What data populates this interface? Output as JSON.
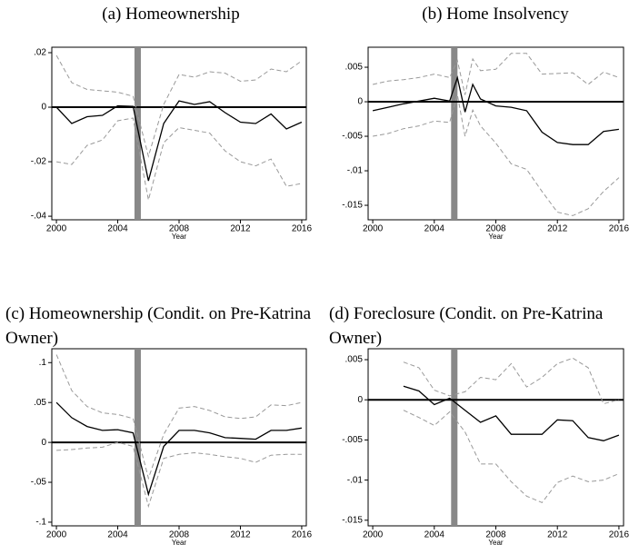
{
  "chart_data": [
    {
      "type": "line",
      "title": "(a) Homeownership",
      "xlabel": "Year",
      "x": [
        2000,
        2001,
        2002,
        2003,
        2004,
        2005,
        2006,
        2007,
        2008,
        2009,
        2010,
        2011,
        2012,
        2013,
        2014,
        2015,
        2016
      ],
      "series": [
        {
          "color": "#000000",
          "dashed": false,
          "values": [
            0,
            -0.006,
            -0.0035,
            -0.003,
            0.0005,
            0.0003,
            -0.027,
            -0.006,
            0.0023,
            0.001,
            0.002,
            -0.002,
            -0.0055,
            -0.006,
            -0.0025,
            -0.008,
            -0.0055
          ]
        },
        {
          "color": "#999999",
          "dashed": true,
          "values": [
            0.019,
            0.009,
            0.0065,
            0.006,
            0.0055,
            0.004,
            -0.018,
            0.001,
            0.012,
            0.011,
            0.013,
            0.0125,
            0.0095,
            0.01,
            0.014,
            0.013,
            0.017
          ]
        },
        {
          "color": "#999999",
          "dashed": true,
          "values": [
            -0.02,
            -0.021,
            -0.014,
            -0.012,
            -0.005,
            -0.004,
            -0.034,
            -0.013,
            -0.0075,
            -0.0085,
            -0.0095,
            -0.016,
            -0.02,
            -0.0215,
            -0.019,
            -0.029,
            -0.028
          ]
        }
      ],
      "xlim": [
        1999.7,
        2016.3
      ],
      "xticks": [
        2000,
        2004,
        2008,
        2012,
        2016
      ],
      "ylim": [
        -0.0413,
        0.022
      ],
      "yticks": [
        {
          "value": 0.02,
          "label": ".02"
        },
        0,
        {
          "value": -0.02,
          "label": "-.02"
        },
        {
          "value": -0.04,
          "label": "-.04"
        }
      ],
      "event_x": 2005.3,
      "event_color": "#888888"
    },
    {
      "type": "line",
      "title": "(b) Home Insolvency",
      "xlabel": "Year",
      "x": [
        2000,
        2001,
        2002,
        2003,
        2004,
        2005,
        2005.5,
        2006,
        2006.5,
        2007,
        2008,
        2009,
        2010,
        2011,
        2012,
        2013,
        2014,
        2015,
        2016
      ],
      "series": [
        {
          "color": "#000000",
          "dashed": false,
          "values": [
            -0.0013,
            -0.0008,
            -0.0003,
            0.0001,
            0.0005,
            0.0001,
            0.0035,
            -0.0015,
            0.0025,
            0.0004,
            -0.0006,
            -0.0008,
            -0.0013,
            -0.0044,
            -0.0059,
            -0.0062,
            -0.0062,
            -0.0043,
            -0.004
          ]
        },
        {
          "color": "#999999",
          "dashed": true,
          "values": [
            0.0025,
            0.003,
            0.0032,
            0.0035,
            0.004,
            0.0035,
            0.006,
            0.001,
            0.0062,
            0.0045,
            0.0047,
            0.007,
            0.007,
            0.004,
            0.0041,
            0.0042,
            0.0025,
            0.0043,
            0.0035
          ]
        },
        {
          "color": "#999999",
          "dashed": true,
          "values": [
            -0.005,
            -0.0046,
            -0.0039,
            -0.0035,
            -0.0028,
            -0.003,
            0.001,
            -0.005,
            -0.0012,
            -0.0035,
            -0.006,
            -0.009,
            -0.0098,
            -0.013,
            -0.016,
            -0.0165,
            -0.0155,
            -0.013,
            -0.011
          ]
        }
      ],
      "xlim": [
        1999.7,
        2016.3
      ],
      "xticks": [
        2000,
        2004,
        2008,
        2012,
        2016
      ],
      "ylim": [
        -0.0171,
        0.0079
      ],
      "yticks": [
        {
          "value": 0.005,
          "label": ".005"
        },
        0,
        {
          "value": -0.005,
          "label": "-.005"
        },
        {
          "value": -0.01,
          "label": "-.01"
        },
        {
          "value": -0.015,
          "label": "-.015"
        }
      ],
      "event_x": 2005.3,
      "event_color": "#888888"
    },
    {
      "type": "line",
      "title": "(c) Homeownership (Condit. on Pre-Katrina Owner)",
      "xlabel": "Year",
      "x": [
        2000,
        2001,
        2002,
        2003,
        2004,
        2005,
        2006,
        2007,
        2008,
        2009,
        2010,
        2011,
        2012,
        2013,
        2014,
        2015,
        2016
      ],
      "series": [
        {
          "color": "#000000",
          "dashed": false,
          "values": [
            0.05,
            0.031,
            0.02,
            0.015,
            0.016,
            0.012,
            -0.065,
            -0.005,
            0.015,
            0.015,
            0.012,
            0.006,
            0.005,
            0.004,
            0.015,
            0.015,
            0.018
          ]
        },
        {
          "color": "#999999",
          "dashed": true,
          "values": [
            0.11,
            0.065,
            0.045,
            0.037,
            0.035,
            0.03,
            -0.045,
            0.01,
            0.043,
            0.045,
            0.04,
            0.032,
            0.03,
            0.032,
            0.047,
            0.046,
            0.05
          ]
        },
        {
          "color": "#999999",
          "dashed": true,
          "values": [
            -0.01,
            -0.009,
            -0.007,
            -0.006,
            0,
            -0.005,
            -0.08,
            -0.02,
            -0.015,
            -0.013,
            -0.015,
            -0.018,
            -0.02,
            -0.025,
            -0.016,
            -0.015,
            -0.015
          ]
        }
      ],
      "xlim": [
        1999.7,
        2016.3
      ],
      "xticks": [
        2000,
        2004,
        2008,
        2012,
        2016
      ],
      "ylim": [
        -0.1046,
        0.1174
      ],
      "yticks": [
        {
          "value": 0.1,
          "label": ".1"
        },
        {
          "value": 0.05,
          "label": ".05"
        },
        0,
        {
          "value": -0.05,
          "label": "-.05"
        },
        {
          "value": -0.1,
          "label": "-.1"
        }
      ],
      "event_x": 2005.3,
      "event_color": "#888888"
    },
    {
      "type": "line",
      "title": "(d) Foreclosure (Condit. on Pre-Katrina Owner)",
      "xlabel": "Year",
      "x": [
        2002,
        2003,
        2004,
        2005,
        2006,
        2007,
        2008,
        2009,
        2010,
        2011,
        2012,
        2013,
        2014,
        2015,
        2016
      ],
      "series": [
        {
          "color": "#000000",
          "dashed": false,
          "values": [
            0.0017,
            0.0011,
            -0.0006,
            0.0002,
            -0.0013,
            -0.0028,
            -0.002,
            -0.0043,
            -0.0043,
            -0.0043,
            -0.0025,
            -0.0026,
            -0.0047,
            -0.0051,
            -0.0044
          ]
        },
        {
          "color": "#999999",
          "dashed": true,
          "values": [
            0.0047,
            0.004,
            0.0012,
            0.0005,
            0.001,
            0.0028,
            0.0025,
            0.0045,
            0.0016,
            0.0028,
            0.0045,
            0.0052,
            0.004,
            -0.0005,
            0
          ]
        },
        {
          "color": "#999999",
          "dashed": true,
          "values": [
            -0.0013,
            -0.0022,
            -0.0032,
            -0.0015,
            -0.004,
            -0.008,
            -0.008,
            -0.0102,
            -0.012,
            -0.0128,
            -0.0103,
            -0.0095,
            -0.0102,
            -0.01,
            -0.0092
          ]
        }
      ],
      "xlim": [
        1999.7,
        2016.3
      ],
      "xticks": [
        2000,
        2004,
        2008,
        2012,
        2016
      ],
      "ylim": [
        -0.0157,
        0.00636
      ],
      "yticks": [
        {
          "value": 0.005,
          "label": ".005"
        },
        0,
        {
          "value": -0.005,
          "label": "-.005"
        },
        {
          "value": -0.01,
          "label": "-.01"
        },
        {
          "value": -0.015,
          "label": "-.015"
        }
      ],
      "event_x": 2005.3,
      "event_color": "#888888"
    }
  ]
}
